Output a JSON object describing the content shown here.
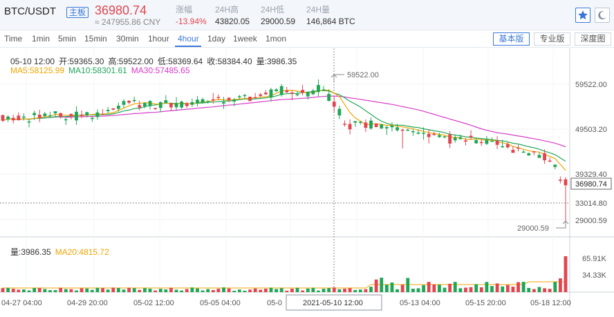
{
  "header": {
    "pair": "BTC/USDT",
    "badge": "主板",
    "last_price": "36980.74",
    "cny_price": "≈ 247955.86 CNY",
    "stats": [
      {
        "label": "涨幅",
        "value": "-13.94%",
        "negative": true
      },
      {
        "label": "24H高",
        "value": "43820.05"
      },
      {
        "label": "24H低",
        "value": "29000.59"
      },
      {
        "label": "24H量",
        "value": "146,864 BTC"
      }
    ]
  },
  "toolbar": {
    "tabs": [
      "Time",
      "1min",
      "5min",
      "15min",
      "30min",
      "1hour",
      "4hour",
      "1day",
      "1week",
      "1mon"
    ],
    "active_tab": "4hour",
    "views": [
      "基本版",
      "专业版",
      "深度图"
    ],
    "active_view": "基本版"
  },
  "info": {
    "line1": [
      "05-10 12:00",
      "开:59365.30",
      "高:59522.00",
      "低:58369.64",
      "收:58384.40",
      "量:3986.35"
    ],
    "ma": [
      "MA5:58125.99",
      "MA10:58301.61",
      "MA30:57485.65"
    ],
    "vol": [
      "量:3986.35",
      "MA20:4815.72"
    ]
  },
  "chart_data": {
    "type": "candlestick",
    "price_axis_labels": [
      "59522.00",
      "49503.20",
      "39329.40",
      "33014.80",
      "29000.59"
    ],
    "current_price_label": "36980.74",
    "volume_axis_labels": [
      "65.91K",
      "34.33K"
    ],
    "time_labels": [
      "04-27 04:00",
      "04-29 20:00",
      "05-02 12:00",
      "05-05 04:00",
      "05-0",
      "05-13 04:00",
      "05-15 20:00",
      "05-18 12:00"
    ],
    "crosshair_time": "2021-05-10 12:00",
    "high_marker": "59522.00",
    "low_marker": "29000.59",
    "colors": {
      "up": "#1fa655",
      "down": "#e2454f",
      "ma5": "#f0a500",
      "ma10": "#22a55a",
      "ma30": "#d63ac8",
      "accent": "#3a78d8"
    }
  }
}
